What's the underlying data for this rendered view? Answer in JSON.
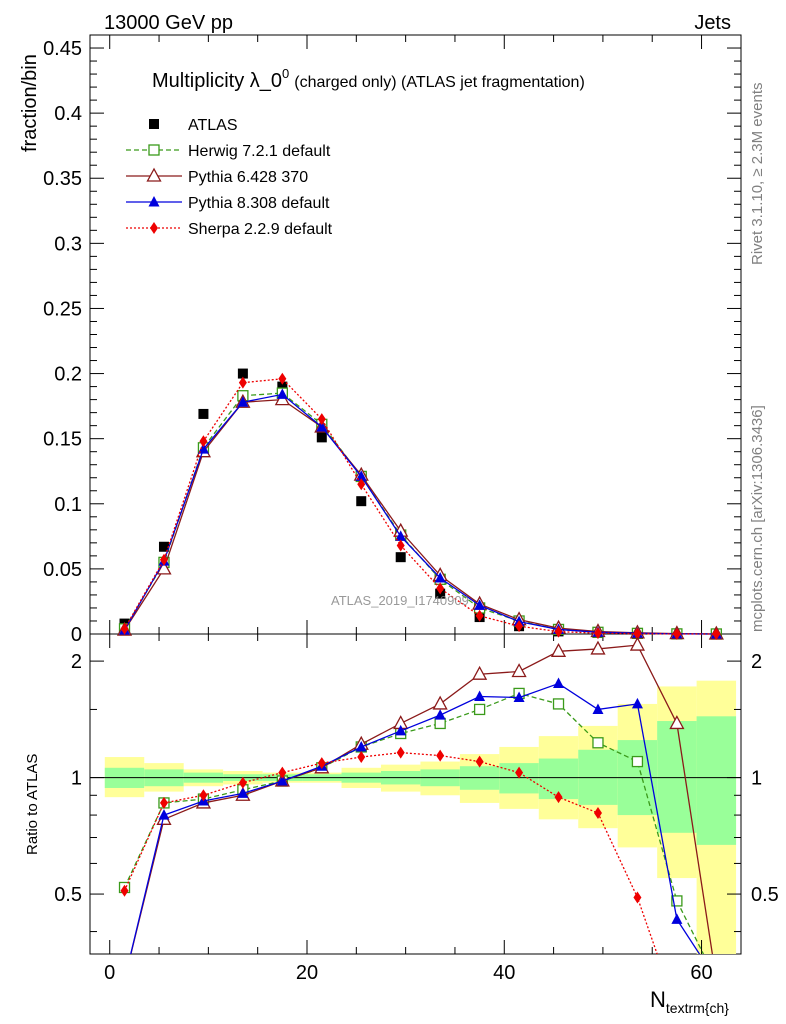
{
  "header": {
    "left": "13000 GeV pp",
    "right": "Jets"
  },
  "side_labels": {
    "rivet": "Rivet 3.1.10, ≥ 2.3M events",
    "mcplots": "mcplots.cern.ch [arXiv:1306.3436]"
  },
  "watermark": "ATLAS_2019_I1740909",
  "chart_data": {
    "type": "line",
    "title": "Multiplicity λ_0^0 (charged only) (ATLAS jet fragmentation)",
    "title_main": "Multiplicity λ_0",
    "title_sup": "0",
    "title_rest": "(charged only) (ATLAS jet fragmentation)",
    "xlabel": "N",
    "xlabel_sub": "textrm{ch}",
    "ylabel": "fraction/bin",
    "ratio_ylabel": "Ratio to ATLAS",
    "xlim": [
      -2,
      64
    ],
    "ylim": [
      0,
      0.46
    ],
    "ratio_ylim": [
      0.35,
      2.35
    ],
    "ratio_log_scale": true,
    "x_ticks": [
      "0",
      "20",
      "40",
      "60"
    ],
    "y_ticks": [
      "0",
      "0.05",
      "0.1",
      "0.15",
      "0.2",
      "0.25",
      "0.3",
      "0.35",
      "0.4",
      "0.45"
    ],
    "ratio_ticks": [
      "0.5",
      "1",
      "2"
    ],
    "x": [
      1.5,
      5.5,
      9.5,
      13.5,
      17.5,
      21.5,
      25.5,
      29.5,
      33.5,
      37.5,
      41.5,
      45.5,
      49.5,
      53.5,
      57.5,
      61.5
    ],
    "legend_position": "top-left",
    "series": [
      {
        "name": "ATLAS",
        "color": "#000000",
        "marker": "square-filled",
        "line": "none",
        "values": [
          0.008,
          0.067,
          0.169,
          0.2,
          0.19,
          0.151,
          0.102,
          0.059,
          0.031,
          0.013,
          0.006,
          0.002,
          0.0009,
          0.0004,
          0.0002,
          0.0001
        ]
      },
      {
        "name": "Herwig 7.2.1 default",
        "color": "#3a9a1a",
        "marker": "square-open",
        "line": "dashed",
        "values": [
          0.004,
          0.055,
          0.143,
          0.183,
          0.185,
          0.161,
          0.121,
          0.076,
          0.042,
          0.02,
          0.01,
          0.0035,
          0.0013,
          0.0005,
          0.0001,
          3e-05
        ],
        "ratio": [
          0.52,
          0.86,
          0.88,
          0.93,
          0.98,
          1.06,
          1.2,
          1.3,
          1.38,
          1.5,
          1.65,
          1.55,
          1.23,
          1.1,
          0.48,
          0.3
        ]
      },
      {
        "name": "Pythia 6.428 370",
        "color": "#8b1a1a",
        "marker": "triangle-open",
        "line": "solid",
        "values": [
          0.003,
          0.05,
          0.14,
          0.178,
          0.18,
          0.159,
          0.122,
          0.079,
          0.045,
          0.023,
          0.011,
          0.0045,
          0.0019,
          0.0009,
          0.0003,
          2e-05
        ],
        "ratio": [
          0.3,
          0.78,
          0.86,
          0.9,
          0.98,
          1.06,
          1.22,
          1.38,
          1.55,
          1.85,
          1.88,
          2.12,
          2.15,
          2.2,
          1.38,
          0.3
        ]
      },
      {
        "name": "Pythia 8.308 default",
        "color": "#0000dd",
        "marker": "triangle-filled",
        "line": "solid",
        "values": [
          0.003,
          0.056,
          0.142,
          0.178,
          0.184,
          0.159,
          0.121,
          0.075,
          0.043,
          0.022,
          0.0095,
          0.0035,
          0.0013,
          0.0006,
          8e-05,
          2e-05
        ],
        "ratio": [
          0.3,
          0.8,
          0.87,
          0.91,
          0.98,
          1.07,
          1.2,
          1.32,
          1.45,
          1.62,
          1.61,
          1.75,
          1.5,
          1.55,
          0.43,
          0.3
        ]
      },
      {
        "name": "Sherpa 2.2.9 default",
        "color": "#ee0000",
        "marker": "diamond-filled",
        "line": "dotted",
        "values": [
          0.004,
          0.057,
          0.148,
          0.193,
          0.196,
          0.165,
          0.115,
          0.068,
          0.035,
          0.014,
          0.006,
          0.0018,
          0.0007,
          0.0002,
          3e-05,
          1e-05
        ],
        "ratio": [
          0.51,
          0.86,
          0.9,
          0.97,
          1.03,
          1.09,
          1.13,
          1.16,
          1.14,
          1.1,
          1.03,
          0.89,
          0.81,
          0.49,
          0.25,
          0.25
        ]
      }
    ],
    "ratio_band_inner": [
      [
        0.94,
        1.06
      ],
      [
        0.95,
        1.05
      ],
      [
        0.97,
        1.03
      ],
      [
        0.98,
        1.02
      ],
      [
        0.98,
        1.02
      ],
      [
        0.98,
        1.02
      ],
      [
        0.97,
        1.03
      ],
      [
        0.96,
        1.04
      ],
      [
        0.95,
        1.05
      ],
      [
        0.93,
        1.07
      ],
      [
        0.91,
        1.09
      ],
      [
        0.88,
        1.12
      ],
      [
        0.85,
        1.18
      ],
      [
        0.8,
        1.25
      ],
      [
        0.72,
        1.4
      ],
      [
        0.67,
        1.44
      ]
    ],
    "ratio_band_outer": [
      [
        0.89,
        1.13
      ],
      [
        0.92,
        1.09
      ],
      [
        0.95,
        1.05
      ],
      [
        0.96,
        1.04
      ],
      [
        0.97,
        1.03
      ],
      [
        0.97,
        1.03
      ],
      [
        0.94,
        1.06
      ],
      [
        0.92,
        1.08
      ],
      [
        0.9,
        1.1
      ],
      [
        0.86,
        1.15
      ],
      [
        0.83,
        1.2
      ],
      [
        0.78,
        1.28
      ],
      [
        0.74,
        1.36
      ],
      [
        0.66,
        1.55
      ],
      [
        0.55,
        1.72
      ],
      [
        0.35,
        1.78
      ]
    ]
  }
}
